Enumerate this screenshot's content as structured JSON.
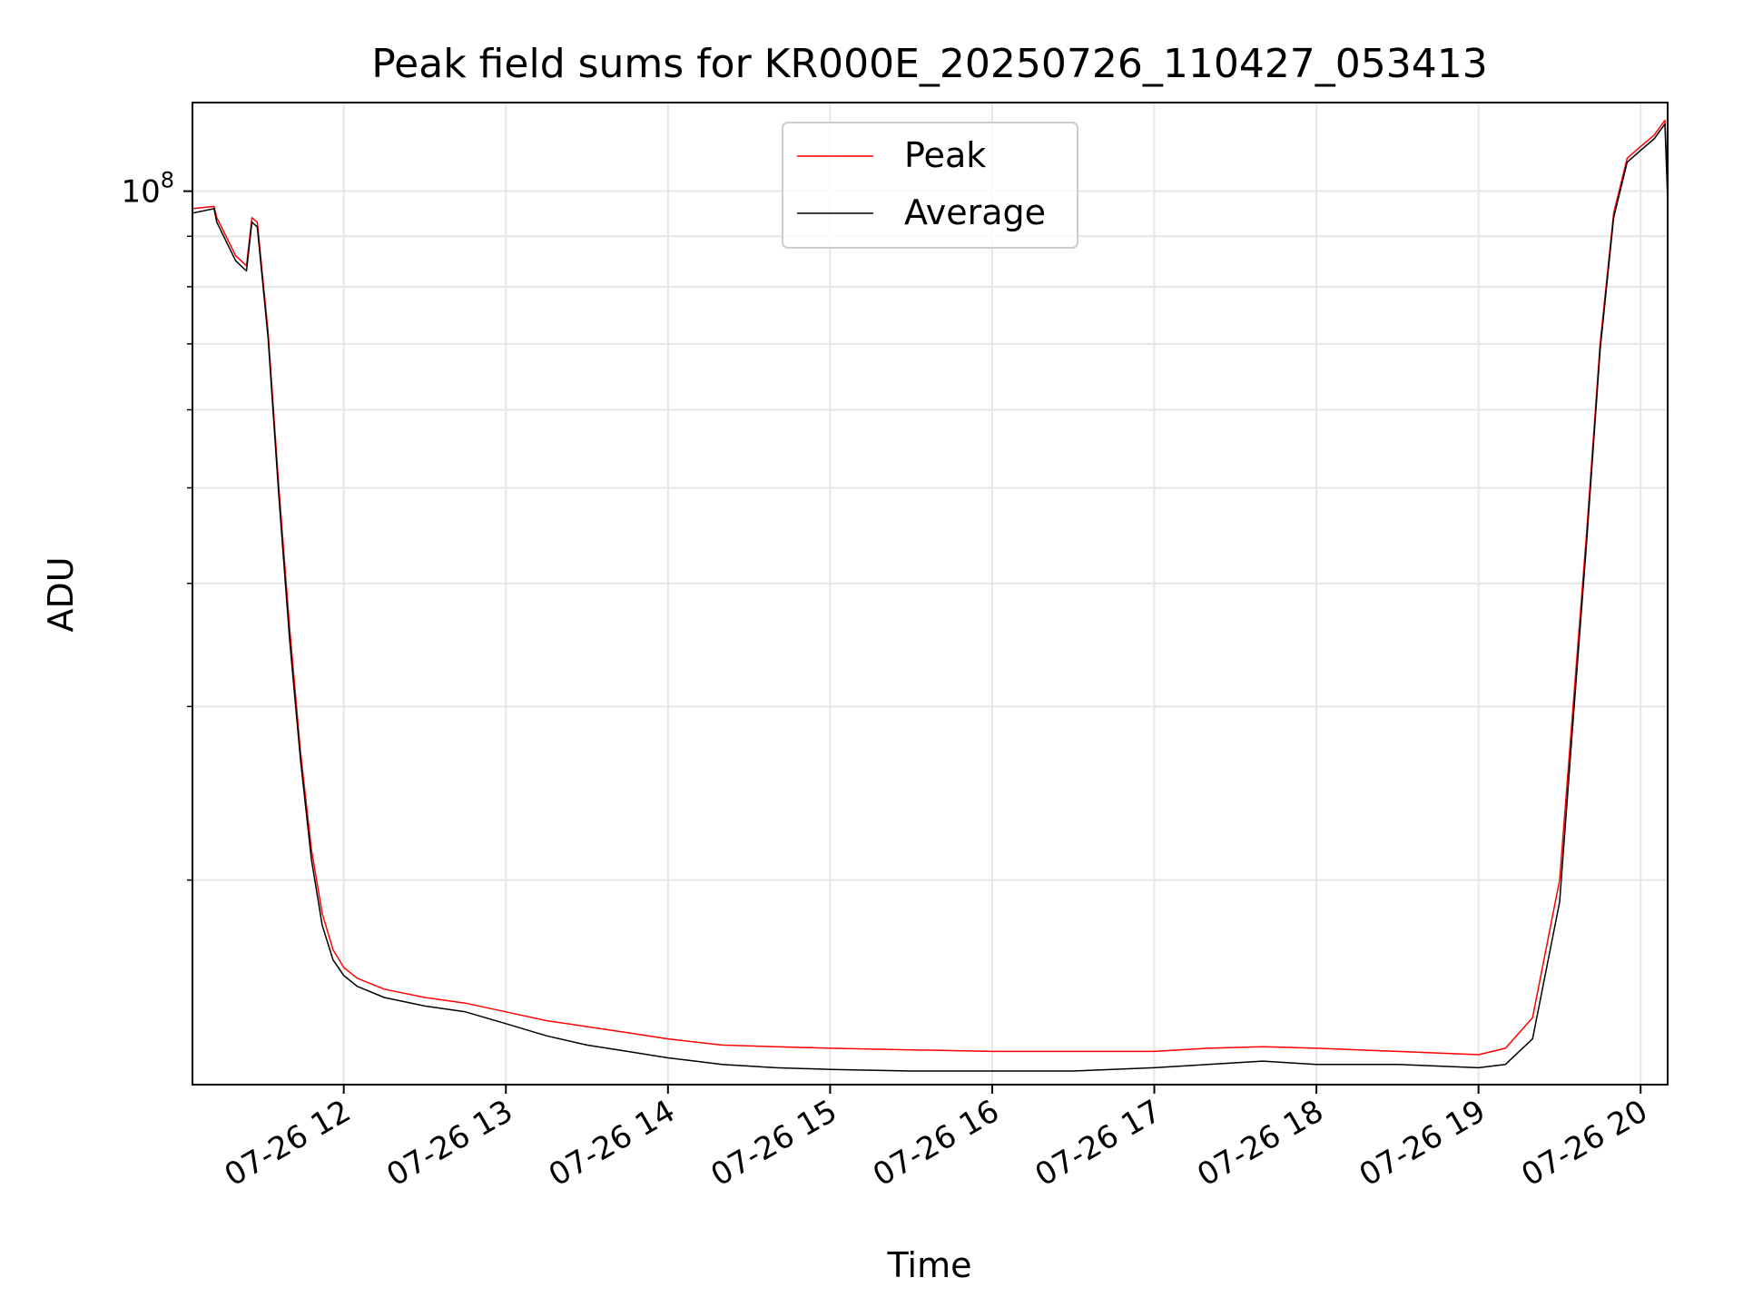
{
  "chart_data": {
    "type": "line",
    "title": "Peak field sums for KR000E_20250726_110427_053413",
    "xlabel": "Time",
    "ylabel": "ADU",
    "y_scale": "log",
    "ylim": [
      12400000,
      123000000
    ],
    "xlim": [
      "2025-07-26T11:04",
      "2025-07-26T20:10"
    ],
    "x_ticks": [
      {
        "x": "2025-07-26T12:00",
        "label": "07-26 12"
      },
      {
        "x": "2025-07-26T13:00",
        "label": "07-26 13"
      },
      {
        "x": "2025-07-26T14:00",
        "label": "07-26 14"
      },
      {
        "x": "2025-07-26T15:00",
        "label": "07-26 15"
      },
      {
        "x": "2025-07-26T16:00",
        "label": "07-26 16"
      },
      {
        "x": "2025-07-26T17:00",
        "label": "07-26 17"
      },
      {
        "x": "2025-07-26T18:00",
        "label": "07-26 18"
      },
      {
        "x": "2025-07-26T19:00",
        "label": "07-26 19"
      },
      {
        "x": "2025-07-26T20:00",
        "label": "07-26 20"
      }
    ],
    "y_ticks": [
      {
        "y": 100000000,
        "label": "10",
        "exponent": "8"
      }
    ],
    "y_minor_ticks": [
      20000000,
      30000000,
      40000000,
      50000000,
      60000000,
      70000000,
      80000000,
      90000000
    ],
    "grid": true,
    "legend_position": "upper-center",
    "series": [
      {
        "name": "Peak",
        "color": "#ff0000",
        "x": [
          "2025-07-26T11:04",
          "2025-07-26T11:12",
          "2025-07-26T11:13",
          "2025-07-26T11:20",
          "2025-07-26T11:24",
          "2025-07-26T11:26",
          "2025-07-26T11:28",
          "2025-07-26T11:32",
          "2025-07-26T11:36",
          "2025-07-26T11:40",
          "2025-07-26T11:44",
          "2025-07-26T11:48",
          "2025-07-26T11:52",
          "2025-07-26T11:56",
          "2025-07-26T12:00",
          "2025-07-26T12:05",
          "2025-07-26T12:15",
          "2025-07-26T12:30",
          "2025-07-26T12:45",
          "2025-07-26T13:00",
          "2025-07-26T13:15",
          "2025-07-26T13:30",
          "2025-07-26T13:45",
          "2025-07-26T14:00",
          "2025-07-26T14:20",
          "2025-07-26T14:40",
          "2025-07-26T15:00",
          "2025-07-26T15:30",
          "2025-07-26T16:00",
          "2025-07-26T16:30",
          "2025-07-26T17:00",
          "2025-07-26T17:20",
          "2025-07-26T17:40",
          "2025-07-26T18:00",
          "2025-07-26T18:30",
          "2025-07-26T19:00",
          "2025-07-26T19:10",
          "2025-07-26T19:20",
          "2025-07-26T19:30",
          "2025-07-26T19:35",
          "2025-07-26T19:40",
          "2025-07-26T19:45",
          "2025-07-26T19:50",
          "2025-07-26T19:55",
          "2025-07-26T20:00",
          "2025-07-26T20:05",
          "2025-07-26T20:09",
          "2025-07-26T20:10"
        ],
        "y": [
          96000000,
          96500000,
          94000000,
          86000000,
          84000000,
          94000000,
          93000000,
          72000000,
          50000000,
          36000000,
          27000000,
          21500000,
          18500000,
          17000000,
          16300000,
          15900000,
          15500000,
          15200000,
          15000000,
          14700000,
          14400000,
          14200000,
          14000000,
          13800000,
          13600000,
          13550000,
          13500000,
          13450000,
          13400000,
          13400000,
          13400000,
          13500000,
          13550000,
          13500000,
          13400000,
          13300000,
          13500000,
          14500000,
          20000000,
          30000000,
          45000000,
          70000000,
          95000000,
          108000000,
          111000000,
          114000000,
          118000000,
          100000000
        ]
      },
      {
        "name": "Average",
        "color": "#000000",
        "x": [
          "2025-07-26T11:04",
          "2025-07-26T11:12",
          "2025-07-26T11:13",
          "2025-07-26T11:20",
          "2025-07-26T11:24",
          "2025-07-26T11:26",
          "2025-07-26T11:28",
          "2025-07-26T11:32",
          "2025-07-26T11:36",
          "2025-07-26T11:40",
          "2025-07-26T11:44",
          "2025-07-26T11:48",
          "2025-07-26T11:52",
          "2025-07-26T11:56",
          "2025-07-26T12:00",
          "2025-07-26T12:05",
          "2025-07-26T12:15",
          "2025-07-26T12:30",
          "2025-07-26T12:45",
          "2025-07-26T13:00",
          "2025-07-26T13:15",
          "2025-07-26T13:30",
          "2025-07-26T13:45",
          "2025-07-26T14:00",
          "2025-07-26T14:20",
          "2025-07-26T14:40",
          "2025-07-26T15:00",
          "2025-07-26T15:30",
          "2025-07-26T16:00",
          "2025-07-26T16:30",
          "2025-07-26T17:00",
          "2025-07-26T17:20",
          "2025-07-26T17:40",
          "2025-07-26T18:00",
          "2025-07-26T18:30",
          "2025-07-26T19:00",
          "2025-07-26T19:10",
          "2025-07-26T19:20",
          "2025-07-26T19:30",
          "2025-07-26T19:35",
          "2025-07-26T19:40",
          "2025-07-26T19:45",
          "2025-07-26T19:50",
          "2025-07-26T19:55",
          "2025-07-26T20:00",
          "2025-07-26T20:05",
          "2025-07-26T20:09",
          "2025-07-26T20:10"
        ],
        "y": [
          95000000,
          96000000,
          93000000,
          85000000,
          83000000,
          93000000,
          92000000,
          71000000,
          49000000,
          35000000,
          26500000,
          21000000,
          18000000,
          16600000,
          16000000,
          15600000,
          15200000,
          14900000,
          14700000,
          14300000,
          13900000,
          13600000,
          13400000,
          13200000,
          13000000,
          12900000,
          12850000,
          12800000,
          12800000,
          12800000,
          12900000,
          13000000,
          13100000,
          13000000,
          13000000,
          12900000,
          13000000,
          13800000,
          19000000,
          29000000,
          44000000,
          69000000,
          94000000,
          107000000,
          110000000,
          113000000,
          117000000,
          98000000
        ]
      }
    ]
  }
}
